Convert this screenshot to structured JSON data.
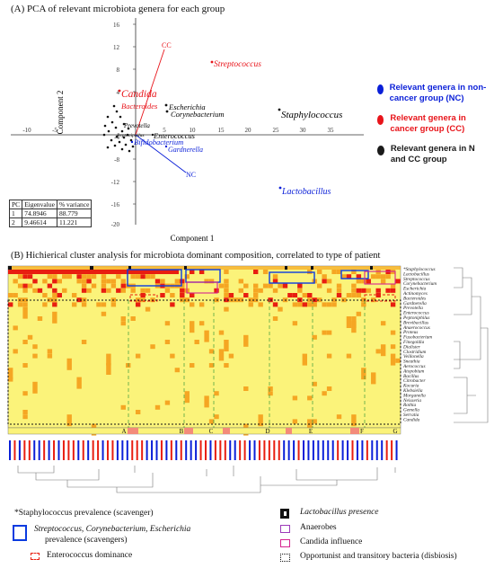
{
  "panel_a": {
    "title": "(A)   PCA of relevant microbiota genera for each group",
    "axis_x_label": "Component 1",
    "axis_y_label": "Component 2",
    "y_ticks": [
      "16",
      "12",
      "8",
      "4",
      "-4",
      "-8",
      "-12",
      "-16",
      "-20"
    ],
    "x_ticks": [
      "-10",
      "-5",
      "5",
      "10",
      "15",
      "20",
      "25",
      "30",
      "35"
    ],
    "vector_labels": {
      "cc": "CC",
      "nc": "NC"
    },
    "genera": {
      "streptococcus": "Streptococcus",
      "candida": "Candida",
      "bacteroides": "Bacteroides",
      "escherichia": "Escherichia",
      "corynebacterium": "Corynebacterium",
      "staphylococcus": "Staphylococcus",
      "prevotella": "Prevotella",
      "peptoniphilus": "Peptoniphilus",
      "enterococcus": "Enterococcus",
      "bifidobacterium": "Bifidobacterium",
      "gardnerella": "Gardnerella",
      "lactobacillus": "Lactobacillus"
    },
    "eigen_table": {
      "headers": [
        "PC",
        "Eigenvalue",
        "% variance"
      ],
      "rows": [
        [
          "1",
          "74.8946",
          "88.779"
        ],
        [
          "2",
          "9.46614",
          "11.221"
        ]
      ]
    },
    "legend": [
      {
        "label": "Relevant genera in non-cancer group (NC)",
        "color": "#0a1fd8"
      },
      {
        "label": "Relevant genera in cancer group (CC)",
        "color": "#e8141a"
      },
      {
        "label": "Relevant genera in N and CC group",
        "color": "#1a1a1a"
      }
    ]
  },
  "panel_b": {
    "title": "(B)   Hichierical cluster analysis for microbiota dominant composition, correlated to type of patient",
    "cluster_letters": [
      "A",
      "B",
      "C",
      "D",
      "E",
      "F",
      "G"
    ],
    "genus_list": [
      "*Staphylococcus",
      "Lactobacillus",
      "Streptococcus",
      "Corynebacterium",
      "Escherichia",
      "Actinomyces",
      "Bacteroides",
      "Gardnerella",
      "Prevotella",
      "Enterococcus",
      "Peptoniphilus",
      "Brevibacillus",
      "Anaerococcus",
      "Proteus",
      "Fusobacterium",
      "Finegoldia",
      "Dialister",
      "Clostridium",
      "Veillonella",
      "Sneathia",
      "Aerococcus",
      "Atopobium",
      "Bacillus",
      "Citrobacter",
      "Kocuria",
      "Klebsiella",
      "Morganella",
      "Neisseria",
      "Rothia",
      "Gemella",
      "Serratia",
      "Candida"
    ]
  },
  "bottom_legend": {
    "staph": "*Staphylococcus prevalence (scavenger)",
    "strep_line1": "Streptococcus,  Corynebacterium,  Escherichia",
    "strep_line2": "prevalence (scavengers)",
    "entero": "Enterococcus dominance",
    "lacto": "Lactobacillus presence",
    "anaerobes": "Anaerobes",
    "candida": "Candida influence",
    "opport": "Opportunist and transitory bacteria (disbiosis)"
  },
  "colors": {
    "nc_blue": "#0a1fd8",
    "cc_red": "#e8141a",
    "heat_bg": "#fbf37a",
    "heat_orange": "#f5a623",
    "heat_red": "#e81e10",
    "magenta": "#d6248f"
  }
}
